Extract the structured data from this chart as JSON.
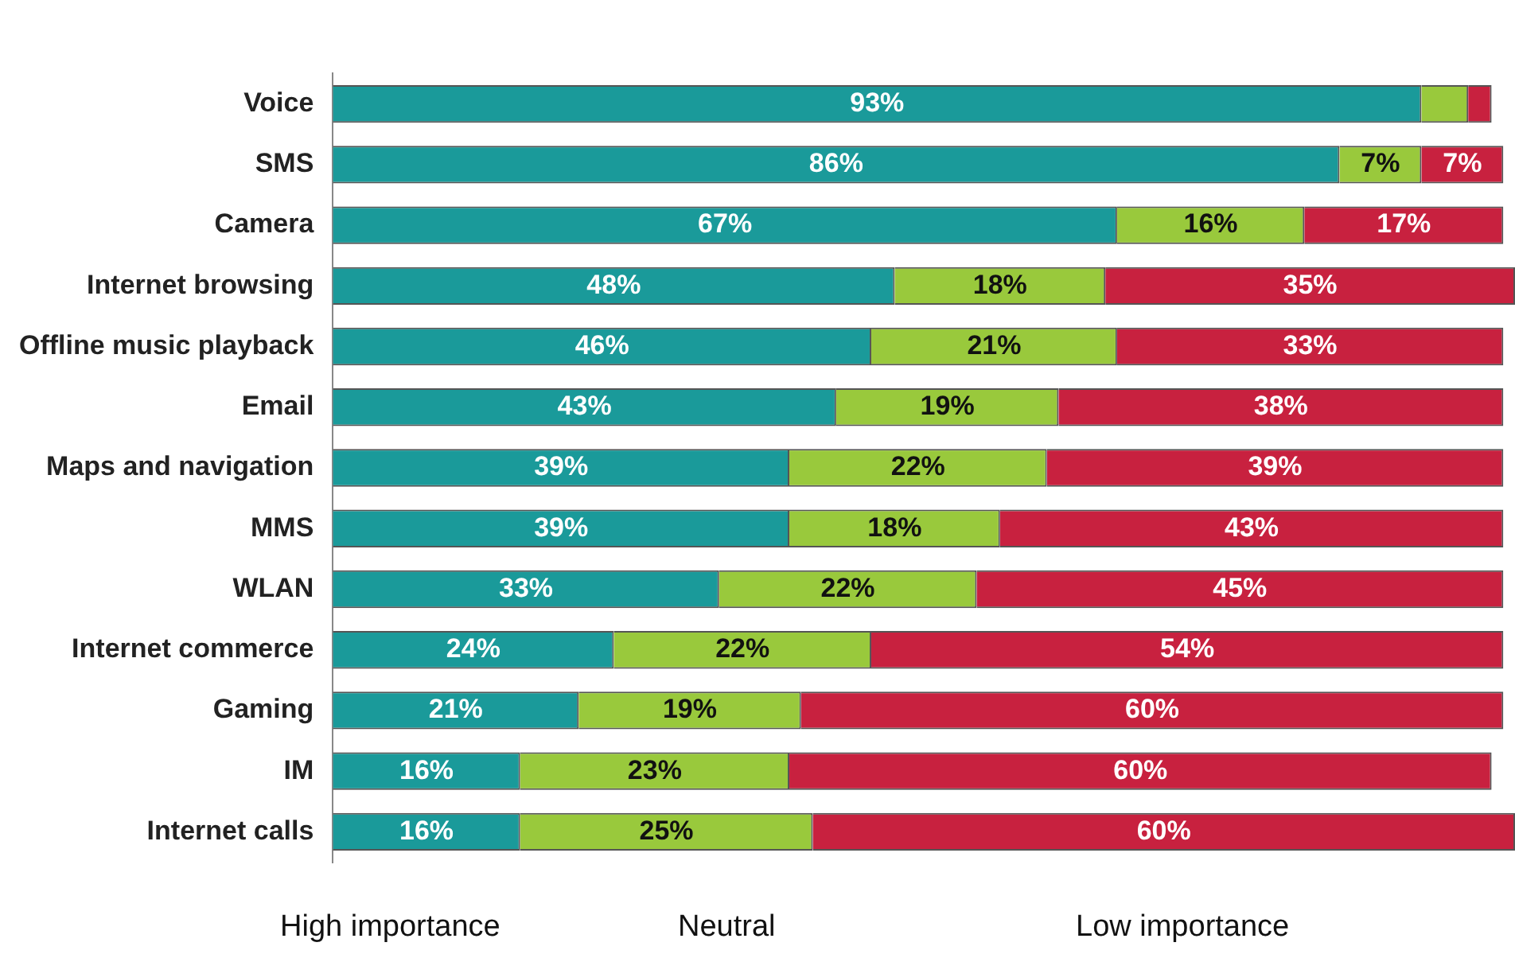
{
  "chart_data": {
    "type": "bar",
    "orientation": "horizontal",
    "stacked": true,
    "legend": "bottom",
    "categories": [
      "Voice",
      "SMS",
      "Camera",
      "Internet browsing",
      "Offline music playback",
      "Email",
      "Maps and navigation",
      "MMS",
      "WLAN",
      "Internet commerce",
      "Gaming",
      "IM",
      "Internet calls"
    ],
    "series": [
      {
        "name": "High importance",
        "color": "#1a9a9a",
        "values": [
          93,
          86,
          67,
          48,
          46,
          43,
          39,
          39,
          33,
          24,
          21,
          16,
          16
        ],
        "value_labels": [
          "93%",
          "86%",
          "67%",
          "48%",
          "46%",
          "43%",
          "39%",
          "39%",
          "33%",
          "24%",
          "21%",
          "16%",
          "16%"
        ]
      },
      {
        "name": "Neutral",
        "color": "#99c93c",
        "values": [
          4,
          7,
          16,
          18,
          21,
          19,
          22,
          18,
          22,
          22,
          19,
          23,
          25
        ],
        "value_labels": [
          null,
          "7%",
          "16%",
          "18%",
          "21%",
          "19%",
          "22%",
          "18%",
          "22%",
          "22%",
          "19%",
          "23%",
          "25%"
        ]
      },
      {
        "name": "Low importance",
        "color": "#c8213f",
        "values": [
          2,
          7,
          17,
          35,
          33,
          38,
          39,
          43,
          45,
          54,
          60,
          60,
          60
        ],
        "value_labels": [
          null,
          "7%",
          "17%",
          "35%",
          "33%",
          "38%",
          "39%",
          "43%",
          "45%",
          "54%",
          "60%",
          "60%",
          "60%"
        ]
      }
    ]
  }
}
